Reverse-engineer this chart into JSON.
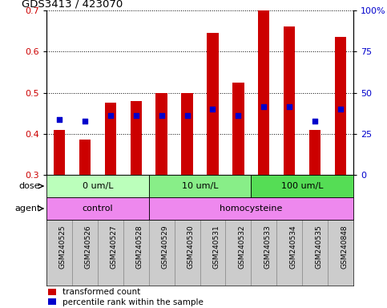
{
  "title": "GDS3413 / 423070",
  "samples": [
    "GSM240525",
    "GSM240526",
    "GSM240527",
    "GSM240528",
    "GSM240529",
    "GSM240530",
    "GSM240531",
    "GSM240532",
    "GSM240533",
    "GSM240534",
    "GSM240535",
    "GSM240848"
  ],
  "transformed_count": [
    0.41,
    0.385,
    0.475,
    0.48,
    0.5,
    0.5,
    0.645,
    0.525,
    0.7,
    0.66,
    0.41,
    0.635
  ],
  "percentile_rank": [
    0.435,
    0.43,
    0.445,
    0.445,
    0.445,
    0.445,
    0.46,
    0.445,
    0.465,
    0.465,
    0.43,
    0.46
  ],
  "bar_color": "#cc0000",
  "dot_color": "#0000cc",
  "ylim_left": [
    0.3,
    0.7
  ],
  "ylim_right": [
    0,
    100
  ],
  "yticks_left": [
    0.3,
    0.4,
    0.5,
    0.6,
    0.7
  ],
  "yticks_right": [
    0,
    25,
    50,
    75,
    100
  ],
  "ytick_labels_right": [
    "0",
    "25",
    "50",
    "75",
    "100%"
  ],
  "dose_groups": [
    {
      "label": "0 um/L",
      "start": 0,
      "end": 4,
      "color": "#bbffbb"
    },
    {
      "label": "10 um/L",
      "start": 4,
      "end": 8,
      "color": "#88ee88"
    },
    {
      "label": "100 um/L",
      "start": 8,
      "end": 12,
      "color": "#55dd55"
    }
  ],
  "agent_groups": [
    {
      "label": "control",
      "start": 0,
      "end": 4,
      "color": "#ee88ee"
    },
    {
      "label": "homocysteine",
      "start": 4,
      "end": 12,
      "color": "#ee88ee"
    }
  ],
  "legend_red_label": "transformed count",
  "legend_blue_label": "percentile rank within the sample",
  "bar_bottom": 0.3,
  "label_area_bg": "#cccccc"
}
